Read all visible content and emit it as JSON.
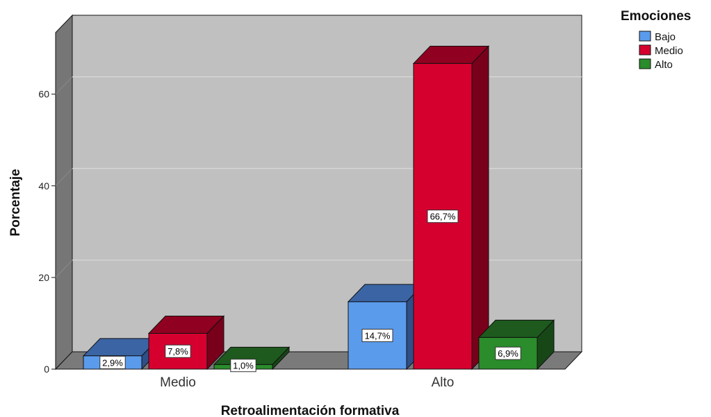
{
  "chart_data": {
    "type": "bar",
    "title": "",
    "xlabel": "Retroalimentación formativa",
    "ylabel": "Porcentaje",
    "categories": [
      "Medio",
      "Alto"
    ],
    "ylim": [
      0,
      70
    ],
    "yticks": [
      0,
      20,
      40,
      60
    ],
    "grid": true,
    "legend": {
      "title": "Emociones",
      "position": "top-right"
    },
    "series": [
      {
        "name": "Bajo",
        "values": [
          2.9,
          14.7
        ],
        "labels": [
          "2,9%",
          "14,7%"
        ],
        "color": "#5b9bec",
        "top_color": "#3a64a4",
        "side_color": "#2e4f87"
      },
      {
        "name": "Medio",
        "values": [
          7.8,
          66.7
        ],
        "labels": [
          "7,8%",
          "66,7%"
        ],
        "color": "#d6002f",
        "top_color": "#900020",
        "side_color": "#78001a"
      },
      {
        "name": "Alto",
        "values": [
          1.0,
          6.9
        ],
        "labels": [
          "1,0%",
          "6,9%"
        ],
        "color": "#2a8c2a",
        "top_color": "#1e5a1e",
        "side_color": "#174717"
      }
    ],
    "plot_colors": {
      "back_wall": "#c0c0c0",
      "side_wall": "#767676",
      "floor": "#7a7a7a",
      "gridline": "#d8d8d8"
    }
  }
}
